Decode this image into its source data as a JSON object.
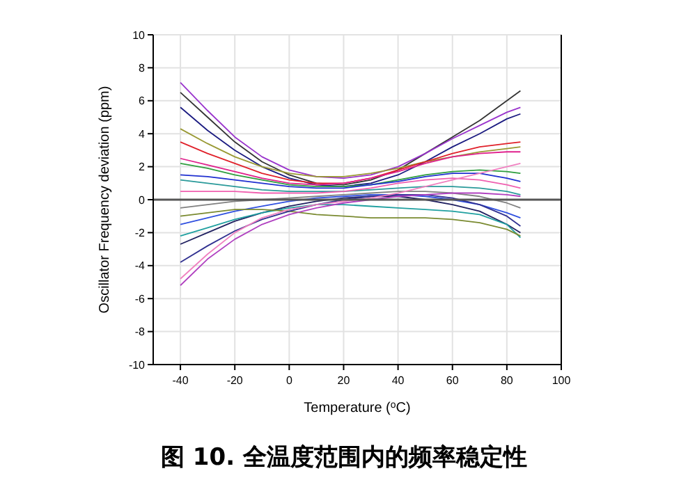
{
  "chart_data": {
    "type": "line",
    "title": "图 10. 全温度范围内的频率稳定性",
    "xlabel": "Temperature ($^{o}$C)",
    "ylabel": "Oscillator Frequency deviation (ppm)",
    "x": [
      -40,
      -30,
      -20,
      -10,
      0,
      10,
      20,
      30,
      40,
      50,
      60,
      70,
      80,
      85
    ],
    "xlim": [
      -50,
      100
    ],
    "xticks": [
      -40,
      -20,
      0,
      20,
      40,
      60,
      80,
      100
    ],
    "ylim": [
      -10,
      10
    ],
    "yticks": [
      -10,
      -8,
      -6,
      -4,
      -2,
      0,
      2,
      4,
      6,
      8,
      10
    ],
    "grid": true,
    "marker": "none",
    "line_style": "solid",
    "ref_lines": [
      {
        "axis": "y",
        "value": 0,
        "color": "#555555"
      }
    ],
    "series": [
      {
        "color": "#333333",
        "values": [
          6.5,
          5.0,
          3.5,
          2.3,
          1.5,
          1.0,
          0.9,
          1.2,
          1.8,
          2.8,
          3.8,
          4.8,
          6.0,
          6.6
        ]
      },
      {
        "color": "#9933cc",
        "values": [
          7.1,
          5.4,
          3.8,
          2.6,
          1.8,
          1.4,
          1.3,
          1.5,
          2.0,
          2.8,
          3.7,
          4.5,
          5.3,
          5.6
        ]
      },
      {
        "color": "#1a1a80",
        "values": [
          5.6,
          4.2,
          3.0,
          2.0,
          1.3,
          0.9,
          0.8,
          1.0,
          1.5,
          2.3,
          3.2,
          4.0,
          4.9,
          5.2
        ]
      },
      {
        "color": "#999933",
        "values": [
          4.3,
          3.4,
          2.6,
          2.0,
          1.6,
          1.4,
          1.4,
          1.6,
          1.9,
          2.3,
          2.6,
          2.9,
          3.1,
          3.2
        ]
      },
      {
        "color": "#e0202a",
        "values": [
          3.5,
          2.8,
          2.2,
          1.6,
          1.2,
          1.0,
          1.0,
          1.3,
          1.8,
          2.3,
          2.8,
          3.2,
          3.4,
          3.5
        ]
      },
      {
        "color": "#e0208c",
        "values": [
          2.5,
          2.1,
          1.7,
          1.3,
          1.0,
          0.9,
          1.0,
          1.3,
          1.7,
          2.2,
          2.6,
          2.8,
          2.9,
          2.9
        ]
      },
      {
        "color": "#2e9e3e",
        "values": [
          2.2,
          1.9,
          1.5,
          1.2,
          0.9,
          0.8,
          0.8,
          0.9,
          1.2,
          1.5,
          1.7,
          1.8,
          1.7,
          1.6
        ]
      },
      {
        "color": "#2030d0",
        "values": [
          1.5,
          1.4,
          1.2,
          1.0,
          0.8,
          0.7,
          0.7,
          0.9,
          1.1,
          1.4,
          1.6,
          1.6,
          1.3,
          1.1
        ]
      },
      {
        "color": "#2a9a9a",
        "values": [
          1.2,
          1.0,
          0.8,
          0.6,
          0.5,
          0.5,
          0.5,
          0.6,
          0.7,
          0.8,
          0.8,
          0.7,
          0.5,
          0.3
        ]
      },
      {
        "color": "#f060b0",
        "values": [
          0.5,
          0.5,
          0.5,
          0.4,
          0.4,
          0.4,
          0.5,
          0.7,
          1.0,
          1.2,
          1.3,
          1.2,
          0.9,
          0.7
        ]
      },
      {
        "color": "#808080",
        "values": [
          -0.5,
          -0.3,
          -0.1,
          0.0,
          0.1,
          0.2,
          0.3,
          0.4,
          0.5,
          0.5,
          0.4,
          0.2,
          -0.2,
          -0.5
        ]
      },
      {
        "color": "#3050e0",
        "values": [
          -1.5,
          -1.1,
          -0.7,
          -0.4,
          -0.1,
          0.1,
          0.2,
          0.3,
          0.3,
          0.2,
          0.0,
          -0.3,
          -0.8,
          -1.1
        ]
      },
      {
        "color": "#202060",
        "values": [
          -2.7,
          -2.0,
          -1.3,
          -0.8,
          -0.4,
          -0.1,
          0.1,
          0.2,
          0.2,
          0.0,
          -0.3,
          -0.7,
          -1.5,
          -2.0
        ]
      },
      {
        "color": "#20a0a0",
        "values": [
          -2.2,
          -1.7,
          -1.2,
          -0.8,
          -0.5,
          -0.3,
          -0.3,
          -0.4,
          -0.5,
          -0.6,
          -0.7,
          -0.9,
          -1.5,
          -2.3
        ]
      },
      {
        "color": "#7a8a30",
        "values": [
          -1.0,
          -0.8,
          -0.6,
          -0.6,
          -0.7,
          -0.9,
          -1.0,
          -1.1,
          -1.1,
          -1.1,
          -1.2,
          -1.4,
          -1.8,
          -2.2
        ]
      },
      {
        "color": "#303090",
        "values": [
          -3.8,
          -2.8,
          -1.9,
          -1.2,
          -0.7,
          -0.3,
          0.0,
          0.2,
          0.3,
          0.3,
          0.1,
          -0.3,
          -1.0,
          -1.6
        ]
      },
      {
        "color": "#b040c0",
        "values": [
          -5.2,
          -3.6,
          -2.4,
          -1.5,
          -0.9,
          -0.5,
          -0.2,
          0.0,
          0.2,
          0.3,
          0.4,
          0.4,
          0.3,
          0.2
        ]
      },
      {
        "color": "#f080c0",
        "values": [
          -4.8,
          -3.3,
          -2.0,
          -1.1,
          -0.6,
          -0.3,
          -0.1,
          0.1,
          0.4,
          0.8,
          1.2,
          1.6,
          2.0,
          2.2
        ]
      }
    ]
  }
}
